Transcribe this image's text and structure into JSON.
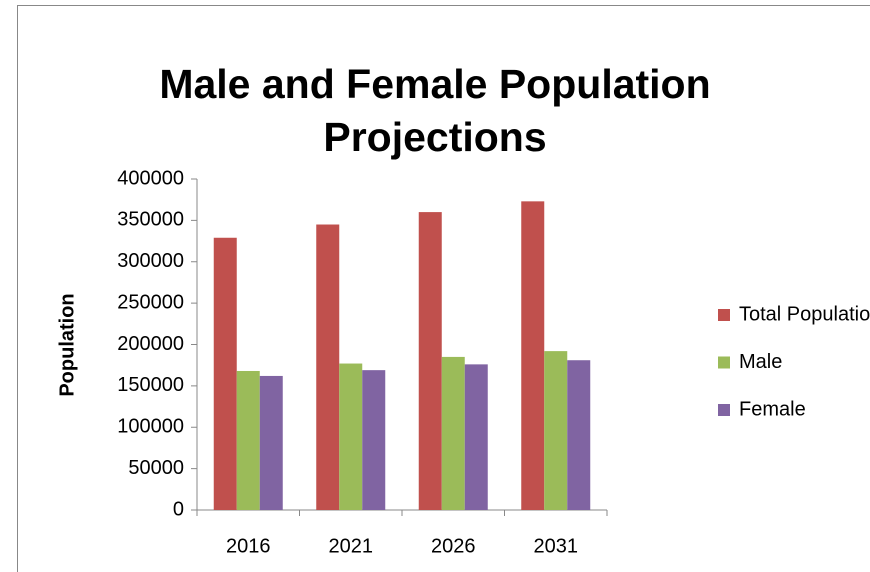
{
  "chart_data": {
    "type": "bar",
    "title": "Male and Female Population Projections",
    "y_label": "Population",
    "categories": [
      "2016",
      "2021",
      "2026",
      "2031"
    ],
    "series": [
      {
        "name": "Total Population",
        "color": "#c0504d",
        "values": [
          329000,
          345000,
          360000,
          373000
        ]
      },
      {
        "name": "Male",
        "color": "#9bbb59",
        "values": [
          168000,
          177000,
          185000,
          192000
        ]
      },
      {
        "name": "Female",
        "color": "#8064a2",
        "values": [
          162000,
          169000,
          176000,
          181000
        ]
      }
    ],
    "ylim": [
      0,
      400000
    ],
    "yticks": [
      0,
      50000,
      100000,
      150000,
      200000,
      250000,
      300000,
      350000,
      400000
    ],
    "grid": false,
    "legend": "right"
  }
}
